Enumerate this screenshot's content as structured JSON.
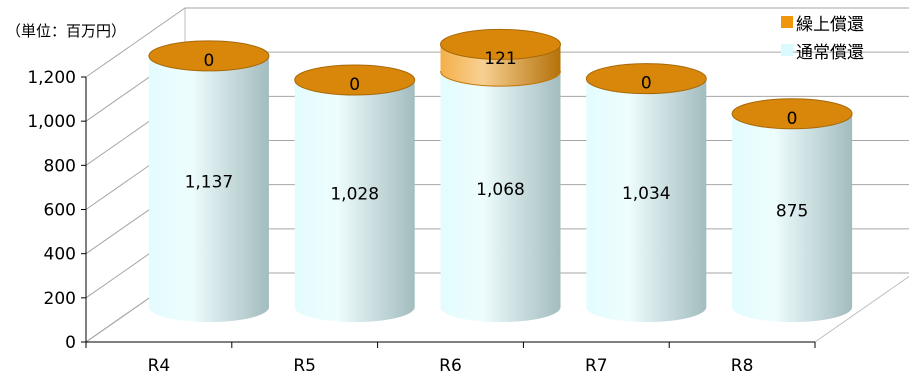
{
  "unit_label": "（単位：百万円）",
  "legend": [
    {
      "label": "繰上償還",
      "color": "#f0960c"
    },
    {
      "label": "通常償還",
      "color": "#d9fbfd"
    }
  ],
  "chart_data": {
    "type": "bar",
    "stacked": true,
    "style": "3d-cylinder",
    "categories": [
      "R4",
      "R5",
      "R6",
      "R7",
      "R8"
    ],
    "series": [
      {
        "name": "通常償還",
        "values": [
          1137,
          1028,
          1068,
          1034,
          875
        ],
        "color": "#d9fbfd"
      },
      {
        "name": "繰上償還",
        "values": [
          0,
          0,
          121,
          0,
          0
        ],
        "color": "#f0960c"
      }
    ],
    "y_ticks": [
      "0",
      "200",
      "400",
      "600",
      "800",
      "1,000",
      "1,200"
    ],
    "ylim": [
      0,
      1200
    ],
    "grid": true,
    "legend_position": "top-right"
  }
}
